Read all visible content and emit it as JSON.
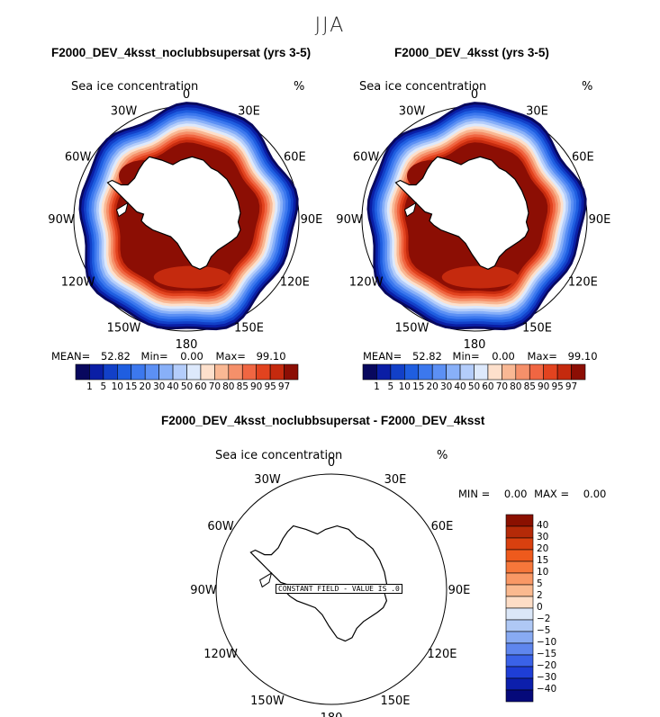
{
  "season": "JJA",
  "panels": [
    {
      "title": "F2000_DEV_4ksst_noclubbsupersat (yrs 3-5)",
      "variable": "Sea ice concentration",
      "units": "%",
      "stats": {
        "mean_label": "MEAN=",
        "mean": "52.82",
        "min_label": "Min=",
        "min": "0.00",
        "max_label": "Max=",
        "max": "99.10"
      }
    },
    {
      "title": "F2000_DEV_4ksst (yrs 3-5)",
      "variable": "Sea ice concentration",
      "units": "%",
      "stats": {
        "mean_label": "MEAN=",
        "mean": "52.82",
        "min_label": "Min=",
        "min": "0.00",
        "max_label": "Max=",
        "max": "99.10"
      }
    }
  ],
  "lon_labels": {
    "top": "0",
    "bottom": "180",
    "upper_left": "30W",
    "upper_right": "30E",
    "mid_upper_left": "60W",
    "mid_upper_right": "60E",
    "left": "90W",
    "right": "90E",
    "mid_lower_left": "120W",
    "mid_lower_right": "120E",
    "lower_left": "150W",
    "lower_right": "150E"
  },
  "colorbar": {
    "labels": [
      "1",
      "5",
      "10",
      "15",
      "20",
      "30",
      "40",
      "50",
      "60",
      "70",
      "80",
      "85",
      "90",
      "95",
      "97"
    ],
    "colors": [
      "#08085e",
      "#0a1ea5",
      "#1240c8",
      "#1f5ee0",
      "#3c78ee",
      "#5c90f4",
      "#88b0f8",
      "#b4cdfb",
      "#dde9fc",
      "#fde0cc",
      "#f9b894",
      "#f5906a",
      "#f06642",
      "#e2431f",
      "#c52a0e",
      "#8c0e04"
    ]
  },
  "difference": {
    "title": "F2000_DEV_4ksst_noclubbsupersat - F2000_DEV_4ksst",
    "variable": "Sea ice concentration",
    "units": "%",
    "stats": {
      "min_label": "MIN =",
      "min": "0.00",
      "max_label": "MAX =",
      "max": "0.00"
    },
    "constant_field": "CONSTANT FIELD - VALUE IS .0",
    "colorbar_labels": [
      "40",
      "30",
      "20",
      "15",
      "10",
      "5",
      "2",
      "0",
      "−2",
      "−5",
      "−10",
      "−15",
      "−20",
      "−30",
      "−40"
    ],
    "colorbar_colors": [
      "#8a1000",
      "#b52a08",
      "#d9400f",
      "#ee5a1c",
      "#f6773a",
      "#f99865",
      "#fab98f",
      "#fdddc6",
      "#dbe7f8",
      "#afc8f5",
      "#88aaf2",
      "#5f86ee",
      "#3a62e8",
      "#1e3ed6",
      "#0c1fac",
      "#05097a"
    ]
  }
}
